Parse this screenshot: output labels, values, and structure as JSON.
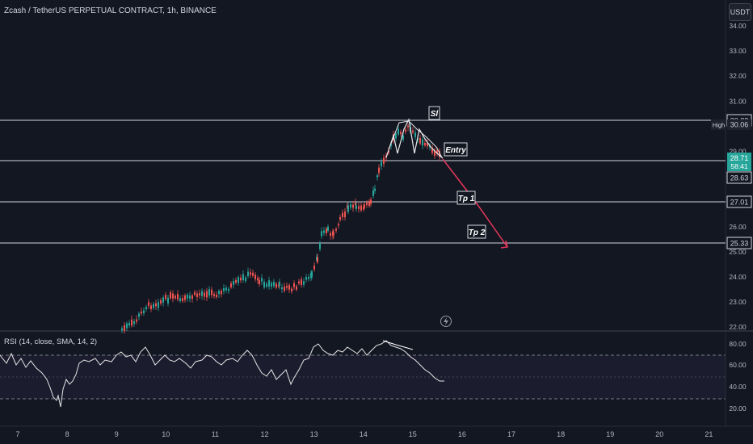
{
  "header": {
    "title": "Zcash / TetherUS PERPETUAL CONTRACT, 1h, BINANCE",
    "currency": "USDT"
  },
  "price_axis": {
    "ticks": [
      "34.00",
      "33.00",
      "32.00",
      "31.00",
      "30.00",
      "29.00",
      "28.00",
      "27.00",
      "26.00",
      "25.00",
      "24.00",
      "23.00",
      "22.00"
    ],
    "labels": {
      "high_tag": "High",
      "high_value": "30.06",
      "sl_level": "30.22",
      "last_price": "28.71",
      "countdown": "58:41",
      "entry_level": "28.63",
      "tp1_level": "27.01",
      "tp2_level": "25.33"
    }
  },
  "annotations": {
    "sl": "Sl",
    "entry": "Entry",
    "tp1": "Tp 1",
    "tp2": "Tp 2"
  },
  "rsi": {
    "title": "RSI (14, close, SMA, 14, 2)",
    "ticks": [
      "80.00",
      "60.00",
      "40.00",
      "20.00"
    ]
  },
  "time_axis": {
    "ticks": [
      "7",
      "8",
      "9",
      "10",
      "11",
      "12",
      "13",
      "14",
      "15",
      "16",
      "17",
      "18",
      "19",
      "20",
      "21"
    ]
  },
  "colors": {
    "background": "#131722",
    "up": "#26a69a",
    "down": "#ef5350",
    "arrow": "#e5375a",
    "last_price_bg": "#26a69a",
    "rsi_band": "#7e57c2"
  },
  "icons": {
    "flash": "lightning-icon"
  }
}
